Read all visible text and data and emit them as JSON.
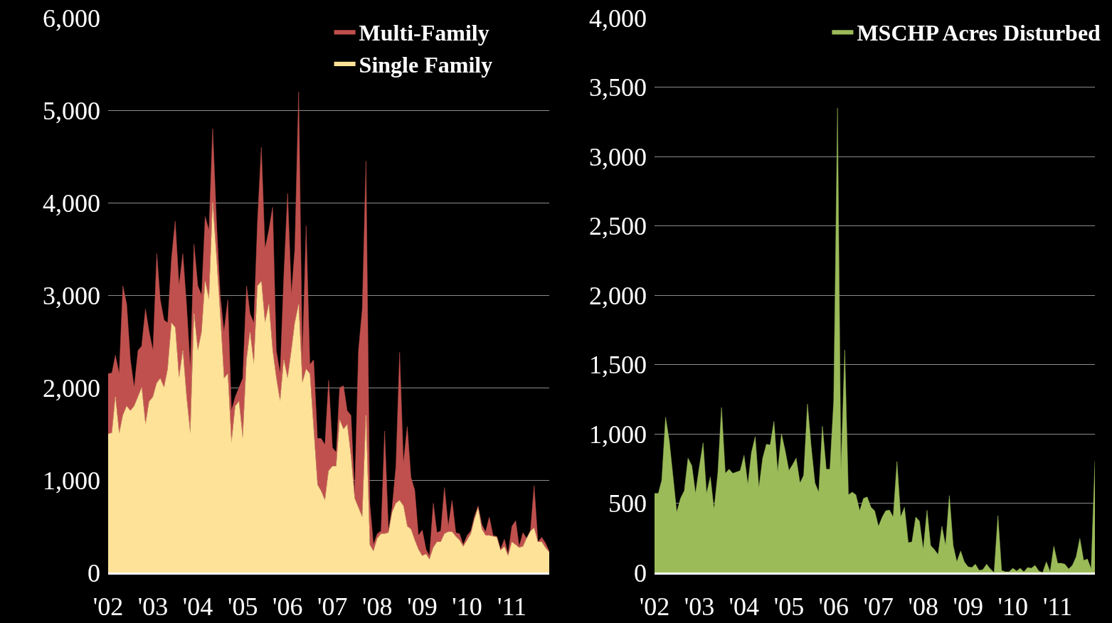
{
  "chart_data": [
    {
      "type": "area",
      "stacked": true,
      "legend": "top right",
      "grid": "y",
      "x": [
        "2002-01",
        "2002-02",
        "2002-03",
        "2002-04",
        "2002-05",
        "2002-06",
        "2002-07",
        "2002-08",
        "2002-09",
        "2002-10",
        "2002-11",
        "2002-12",
        "2003-01",
        "2003-02",
        "2003-03",
        "2003-04",
        "2003-05",
        "2003-06",
        "2003-07",
        "2003-08",
        "2003-09",
        "2003-10",
        "2003-11",
        "2003-12",
        "2004-01",
        "2004-02",
        "2004-03",
        "2004-04",
        "2004-05",
        "2004-06",
        "2004-07",
        "2004-08",
        "2004-09",
        "2004-10",
        "2004-11",
        "2004-12",
        "2005-01",
        "2005-02",
        "2005-03",
        "2005-04",
        "2005-05",
        "2005-06",
        "2005-07",
        "2005-08",
        "2005-09",
        "2005-10",
        "2005-11",
        "2005-12",
        "2006-01",
        "2006-02",
        "2006-03",
        "2006-04",
        "2006-05",
        "2006-06",
        "2006-07",
        "2006-08",
        "2006-09",
        "2006-10",
        "2006-11",
        "2006-12",
        "2007-01",
        "2007-02",
        "2007-03",
        "2007-04",
        "2007-05",
        "2007-06",
        "2007-07",
        "2007-08",
        "2007-09",
        "2007-10",
        "2007-11",
        "2007-12",
        "2008-01",
        "2008-02",
        "2008-03",
        "2008-04",
        "2008-05",
        "2008-06",
        "2008-07",
        "2008-08",
        "2008-09",
        "2008-10",
        "2008-11",
        "2008-12",
        "2009-01",
        "2009-02",
        "2009-03",
        "2009-04",
        "2009-05",
        "2009-06",
        "2009-07",
        "2009-08",
        "2009-09",
        "2009-10",
        "2009-11",
        "2009-12",
        "2010-01",
        "2010-02",
        "2010-03",
        "2010-04",
        "2010-05",
        "2010-06",
        "2010-07",
        "2010-08",
        "2010-09",
        "2010-10",
        "2010-11",
        "2010-12",
        "2011-01",
        "2011-02",
        "2011-03",
        "2011-04",
        "2011-05",
        "2011-06",
        "2011-07",
        "2011-08",
        "2011-09",
        "2011-10",
        "2011-11"
      ],
      "xlim": [
        "2002-01",
        "2011-11"
      ],
      "xticks": [
        {
          "value": "2002-01",
          "label": "'02"
        },
        {
          "value": "2003-01",
          "label": "'03"
        },
        {
          "value": "2004-01",
          "label": "'04"
        },
        {
          "value": "2005-01",
          "label": "'05"
        },
        {
          "value": "2006-01",
          "label": "'06"
        },
        {
          "value": "2007-01",
          "label": "'07"
        },
        {
          "value": "2008-01",
          "label": "'08"
        },
        {
          "value": "2009-01",
          "label": "'09"
        },
        {
          "value": "2010-01",
          "label": "'10"
        },
        {
          "value": "2011-01",
          "label": "'11"
        }
      ],
      "ylim": [
        0,
        6000
      ],
      "yticks": [
        {
          "value": 0,
          "label": "0"
        },
        {
          "value": 1000,
          "label": "1,000"
        },
        {
          "value": 2000,
          "label": "2,000"
        },
        {
          "value": 3000,
          "label": "3,000"
        },
        {
          "value": 4000,
          "label": "4,000"
        },
        {
          "value": 5000,
          "label": "5,000"
        },
        {
          "value": 6000,
          "label": "6,000"
        }
      ],
      "series": [
        {
          "name": "Single Family",
          "color": "#fee298",
          "values": [
            1500,
            1510,
            1900,
            1500,
            1700,
            1800,
            1750,
            1800,
            1900,
            2000,
            1600,
            1850,
            1900,
            2050,
            2100,
            2000,
            2200,
            2700,
            2650,
            2100,
            2400,
            1900,
            1500,
            2800,
            2400,
            2600,
            3150,
            2950,
            4000,
            3400,
            2800,
            2100,
            2150,
            1400,
            1800,
            1850,
            1450,
            2300,
            2600,
            2250,
            3100,
            3150,
            2700,
            2900,
            2400,
            2100,
            1850,
            2300,
            2100,
            2400,
            2700,
            2900,
            2050,
            2200,
            2150,
            1550,
            950,
            880,
            780,
            1100,
            1150,
            1150,
            1650,
            1550,
            1600,
            1250,
            800,
            700,
            600,
            1700,
            300,
            230,
            370,
            420,
            420,
            430,
            650,
            750,
            780,
            720,
            500,
            470,
            350,
            250,
            180,
            200,
            140,
            270,
            330,
            330,
            420,
            440,
            440,
            390,
            350,
            280,
            350,
            420,
            570,
            700,
            470,
            400,
            400,
            390,
            380,
            240,
            280,
            180,
            330,
            300,
            270,
            280,
            370,
            450,
            480,
            330,
            330,
            270,
            220
          ]
        },
        {
          "name": "Multi-Family",
          "color": "#c0504d",
          "values": [
            650,
            650,
            450,
            650,
            1400,
            1100,
            550,
            200,
            500,
            450,
            1250,
            750,
            500,
            1400,
            850,
            730,
            500,
            700,
            1150,
            1000,
            1050,
            1000,
            700,
            750,
            700,
            400,
            700,
            750,
            800,
            400,
            200,
            500,
            800,
            350,
            100,
            150,
            650,
            800,
            200,
            450,
            700,
            1450,
            800,
            800,
            1550,
            300,
            300,
            900,
            2000,
            600,
            800,
            2300,
            250,
            1550,
            100,
            750,
            500,
            570,
            600,
            980,
            200,
            150,
            350,
            470,
            150,
            450,
            50,
            1700,
            2250,
            2750,
            450,
            70,
            50,
            30,
            1110,
            20,
            50,
            400,
            1600,
            460,
            1080,
            560,
            540,
            150,
            280,
            50,
            40,
            480,
            100,
            120,
            500,
            60,
            340,
            40,
            70,
            20,
            50,
            30,
            30,
            20,
            50,
            40,
            200,
            10,
            10,
            10,
            80,
            20,
            170,
            260,
            10,
            150,
            0,
            0,
            460,
            0,
            50,
            50,
            10
          ]
        }
      ]
    },
    {
      "type": "area",
      "legend": "top right",
      "grid": "y",
      "x": [
        "2002-01",
        "2002-02",
        "2002-03",
        "2002-04",
        "2002-05",
        "2002-06",
        "2002-07",
        "2002-08",
        "2002-09",
        "2002-10",
        "2002-11",
        "2002-12",
        "2003-01",
        "2003-02",
        "2003-03",
        "2003-04",
        "2003-05",
        "2003-06",
        "2003-07",
        "2003-08",
        "2003-09",
        "2003-10",
        "2003-11",
        "2003-12",
        "2004-01",
        "2004-02",
        "2004-03",
        "2004-04",
        "2004-05",
        "2004-06",
        "2004-07",
        "2004-08",
        "2004-09",
        "2004-10",
        "2004-11",
        "2004-12",
        "2005-01",
        "2005-02",
        "2005-03",
        "2005-04",
        "2005-05",
        "2005-06",
        "2005-07",
        "2005-08",
        "2005-09",
        "2005-10",
        "2005-11",
        "2005-12",
        "2006-01",
        "2006-02",
        "2006-03",
        "2006-04",
        "2006-05",
        "2006-06",
        "2006-07",
        "2006-08",
        "2006-09",
        "2006-10",
        "2006-11",
        "2006-12",
        "2007-01",
        "2007-02",
        "2007-03",
        "2007-04",
        "2007-05",
        "2007-06",
        "2007-07",
        "2007-08",
        "2007-09",
        "2007-10",
        "2007-11",
        "2007-12",
        "2008-01",
        "2008-02",
        "2008-03",
        "2008-04",
        "2008-05",
        "2008-06",
        "2008-07",
        "2008-08",
        "2008-09",
        "2008-10",
        "2008-11",
        "2008-12",
        "2009-01",
        "2009-02",
        "2009-03",
        "2009-04",
        "2009-05",
        "2009-06",
        "2009-07",
        "2009-08",
        "2009-09",
        "2009-10",
        "2009-11",
        "2009-12",
        "2010-01",
        "2010-02",
        "2010-03",
        "2010-04",
        "2010-05",
        "2010-06",
        "2010-07",
        "2010-08",
        "2010-09",
        "2010-10",
        "2010-11",
        "2010-12",
        "2011-01",
        "2011-02",
        "2011-03",
        "2011-04",
        "2011-05",
        "2011-06",
        "2011-07",
        "2011-08",
        "2011-09",
        "2011-10",
        "2011-11"
      ],
      "xlim": [
        "2002-01",
        "2011-11"
      ],
      "xticks": [
        {
          "value": "2002-01",
          "label": "'02"
        },
        {
          "value": "2003-01",
          "label": "'03"
        },
        {
          "value": "2004-01",
          "label": "'04"
        },
        {
          "value": "2005-01",
          "label": "'05"
        },
        {
          "value": "2006-01",
          "label": "'06"
        },
        {
          "value": "2007-01",
          "label": "'07"
        },
        {
          "value": "2008-01",
          "label": "'08"
        },
        {
          "value": "2009-01",
          "label": "'09"
        },
        {
          "value": "2010-01",
          "label": "'10"
        },
        {
          "value": "2011-01",
          "label": "'11"
        }
      ],
      "ylim": [
        0,
        4000
      ],
      "yticks": [
        {
          "value": 0,
          "label": "0"
        },
        500,
        {
          "value": 1000,
          "label": "1,000"
        },
        {
          "value": 1500,
          "label": "1,500"
        },
        {
          "value": 2000,
          "label": "2,000"
        },
        {
          "value": 2500,
          "label": "2,500"
        },
        {
          "value": 3000,
          "label": "3,000"
        },
        {
          "value": 3500,
          "label": "3,500"
        },
        {
          "value": 4000,
          "label": "4,000"
        }
      ],
      "series": [
        {
          "name": "MSCHP Acres Disturbed",
          "color": "#9bbb59",
          "values": [
            570,
            570,
            665,
            1120,
            950,
            690,
            435,
            535,
            590,
            825,
            770,
            570,
            760,
            935,
            570,
            690,
            455,
            715,
            1190,
            715,
            745,
            715,
            725,
            735,
            845,
            635,
            865,
            980,
            610,
            825,
            925,
            920,
            1090,
            725,
            1000,
            880,
            735,
            780,
            825,
            645,
            700,
            1215,
            910,
            645,
            580,
            1055,
            745,
            745,
            1240,
            3350,
            735,
            1605,
            560,
            580,
            560,
            445,
            535,
            545,
            470,
            445,
            333,
            400,
            445,
            450,
            400,
            800,
            400,
            470,
            215,
            220,
            400,
            370,
            165,
            450,
            195,
            165,
            130,
            333,
            195,
            555,
            195,
            77,
            155,
            77,
            41,
            36,
            60,
            15,
            21,
            60,
            26,
            0,
            410,
            15,
            5,
            5,
            31,
            10,
            31,
            5,
            36,
            31,
            51,
            10,
            0,
            77,
            5,
            190,
            67,
            67,
            60,
            26,
            51,
            113,
            246,
            87,
            97,
            26,
            805
          ]
        }
      ]
    }
  ]
}
